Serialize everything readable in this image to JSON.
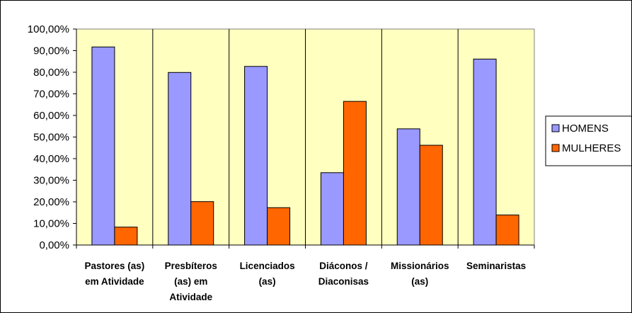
{
  "chart_data": {
    "type": "bar",
    "categories": [
      [
        "Pastores (as)",
        "em Atividade"
      ],
      [
        "Presbíteros",
        "(as) em",
        "Atividade"
      ],
      [
        "Licenciados",
        "(as)"
      ],
      [
        "Diáconos /",
        "Diaconisas"
      ],
      [
        "Missionários",
        "(as)"
      ],
      [
        "Seminaristas"
      ]
    ],
    "series": [
      {
        "name": "HOMENS",
        "color": "#9999ff",
        "values": [
          91.7,
          79.9,
          82.7,
          33.5,
          53.8,
          86.1
        ]
      },
      {
        "name": "MULHERES",
        "color": "#ff6600",
        "values": [
          8.3,
          20.1,
          17.3,
          66.5,
          46.2,
          13.9
        ]
      }
    ],
    "ylim": [
      0,
      100
    ],
    "yticks": [
      "0,00%",
      "10,00%",
      "20,00%",
      "30,00%",
      "40,00%",
      "50,00%",
      "60,00%",
      "70,00%",
      "80,00%",
      "90,00%",
      "100,00%"
    ],
    "plot_background": "#ffffc0",
    "grid": false,
    "legend_position": "right"
  }
}
